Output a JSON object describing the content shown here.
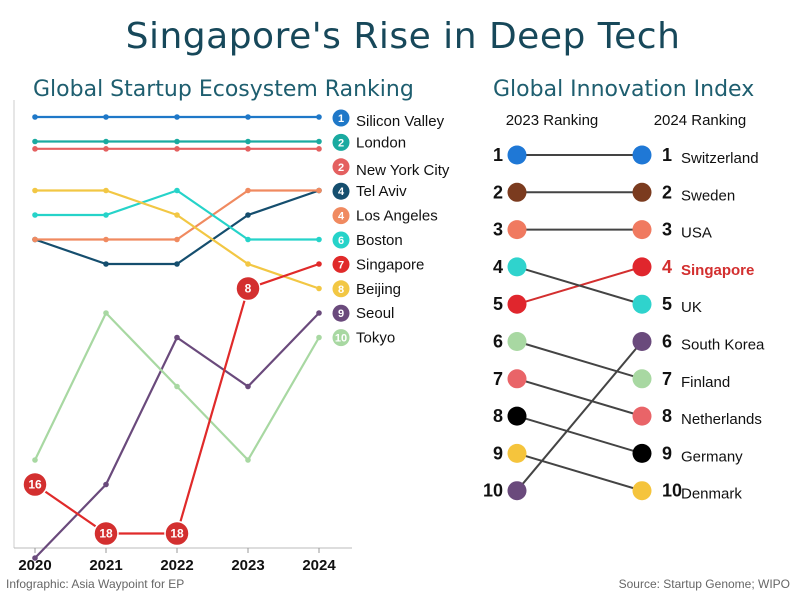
{
  "title": "Singapore's Rise in Deep Tech",
  "credit": "Infographic: Asia Waypoint for EP",
  "source": "Source: Startup Genome; WIPO",
  "highlight_color": "#d32f2f",
  "chart_data": [
    {
      "type": "line",
      "title": "Global Startup Ecosystem Ranking",
      "x": [
        "2020",
        "2021",
        "2022",
        "2023",
        "2024"
      ],
      "ylim": [
        1,
        19
      ],
      "y_inverted": true,
      "series": [
        {
          "rank": "1",
          "name": "Silicon Valley",
          "color": "#1f78c8",
          "values": [
            1,
            1,
            1,
            1,
            1
          ]
        },
        {
          "rank": "2",
          "name": "London",
          "color": "#1aaaa0",
          "values": [
            2,
            2,
            2,
            2,
            2
          ]
        },
        {
          "rank": "2",
          "name": "New York City",
          "color": "#e46060",
          "values": [
            2.3,
            2.3,
            2.3,
            2.3,
            2.3
          ]
        },
        {
          "rank": "4",
          "name": "Tel Aviv",
          "color": "#154e6e",
          "values": [
            6,
            7,
            7,
            5,
            4
          ]
        },
        {
          "rank": "4",
          "name": "Los Angeles",
          "color": "#f08a60",
          "values": [
            6,
            6,
            6,
            4,
            4
          ]
        },
        {
          "rank": "6",
          "name": "Boston",
          "color": "#26d3c9",
          "values": [
            5,
            5,
            4,
            6,
            6
          ]
        },
        {
          "rank": "7",
          "name": "Singapore",
          "color": "#e02a2a",
          "values": [
            16,
            18,
            18,
            8,
            7
          ]
        },
        {
          "rank": "8",
          "name": "Beijing",
          "color": "#f2c744",
          "values": [
            4,
            4,
            5,
            7,
            8
          ]
        },
        {
          "rank": "9",
          "name": "Seoul",
          "color": "#6a4a7c",
          "values": [
            19,
            16,
            10,
            12,
            9
          ]
        },
        {
          "rank": "10",
          "name": "Tokyo",
          "color": "#a8d8a2",
          "values": [
            15,
            9,
            12,
            15,
            10
          ]
        }
      ],
      "point_labels": [
        {
          "series": "Singapore",
          "x": "2020",
          "label": "16"
        },
        {
          "series": "Singapore",
          "x": "2021",
          "label": "18"
        },
        {
          "series": "Singapore",
          "x": "2022",
          "label": "18"
        },
        {
          "series": "Singapore",
          "x": "2023",
          "label": "8"
        }
      ]
    },
    {
      "type": "slope",
      "title": "Global Innovation Index",
      "columns": [
        "2023 Ranking",
        "2024 Ranking"
      ],
      "rows": [
        {
          "country": "Switzerland",
          "color": "#1f78d6",
          "rank_2023": 1,
          "rank_2024": 1
        },
        {
          "country": "Sweden",
          "color": "#7b3b1f",
          "rank_2023": 2,
          "rank_2024": 2
        },
        {
          "country": "USA",
          "color": "#f07a60",
          "rank_2023": 3,
          "rank_2024": 3
        },
        {
          "country": "Singapore",
          "color": "#e0262d",
          "rank_2023": 5,
          "rank_2024": 4
        },
        {
          "country": "UK",
          "color": "#2fd3cd",
          "rank_2023": 4,
          "rank_2024": 5
        },
        {
          "country": "South Korea",
          "color": "#6a4a7c",
          "rank_2023": 10,
          "rank_2024": 6
        },
        {
          "country": "Finland",
          "color": "#a8d8a2",
          "rank_2023": 6,
          "rank_2024": 7
        },
        {
          "country": "Netherlands",
          "color": "#e96468",
          "rank_2023": 7,
          "rank_2024": 8
        },
        {
          "country": "Germany",
          "color": "#000000",
          "rank_2023": 8,
          "rank_2024": 9
        },
        {
          "country": "Denmark",
          "color": "#f5c43c",
          "rank_2023": 9,
          "rank_2024": 10
        }
      ],
      "highlight": "Singapore"
    }
  ]
}
